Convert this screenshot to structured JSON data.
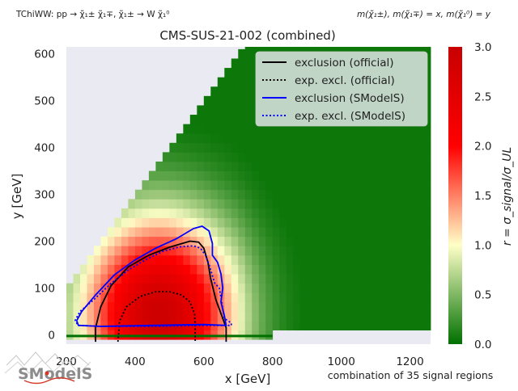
{
  "chart_data": {
    "type": "heatmap",
    "title": "CMS-SUS-21-002 (combined)",
    "process_label": "TChiWW: pp → χ̃₁± χ̃₁∓, χ̃₁± → W χ̃₁⁰",
    "mass_label": "m(χ̃₁±), m(χ̃₁∓) = x, m(χ̃₁⁰) = y",
    "xlabel": "x [GeV]",
    "ylabel": "y [GeV]",
    "colorbar_label": "r = σ_signal/σ_UL",
    "footnote": "combination of 35 signal regions",
    "logo_text": "SModelS",
    "xlim": [
      200,
      1260
    ],
    "ylim": [
      -20,
      615
    ],
    "clim": [
      0,
      3
    ],
    "x_ticks": [
      "200",
      "400",
      "600",
      "800",
      "1000",
      "1200"
    ],
    "y_ticks": [
      "0",
      "100",
      "200",
      "300",
      "400",
      "500",
      "600"
    ],
    "colorbar_ticks": [
      "0.0",
      "0.5",
      "1.0",
      "1.5",
      "2.0",
      "2.5",
      "3.0"
    ],
    "grid": false,
    "legend_position": "top-right",
    "colormap": [
      "#007000",
      "#ffffc8",
      "#ff0000",
      "#c80000"
    ],
    "background_color": "#eaeaf2",
    "heatmap_model": {
      "peak_r": 2.9,
      "peak_x": 470,
      "peak_y": 45,
      "domain": "y < x - 100 and y <= 615",
      "description": "r decreases from a red core around x≈470, y≈45 to dark green at large x and y"
    },
    "series": [
      {
        "name": "exclusion (official)",
        "color": "#000000",
        "style": "solid",
        "points": [
          [
            285,
            -15
          ],
          [
            285,
            15
          ],
          [
            300,
            60
          ],
          [
            330,
            105
          ],
          [
            380,
            145
          ],
          [
            440,
            170
          ],
          [
            500,
            187
          ],
          [
            560,
            200
          ],
          [
            585,
            198
          ],
          [
            600,
            185
          ],
          [
            612,
            155
          ],
          [
            620,
            120
          ],
          [
            635,
            75
          ],
          [
            655,
            35
          ],
          [
            665,
            15
          ],
          [
            665,
            -15
          ]
        ]
      },
      {
        "name": "exp. excl. (official)",
        "color": "#000000",
        "style": "dotted",
        "points": [
          [
            350,
            -15
          ],
          [
            355,
            30
          ],
          [
            375,
            60
          ],
          [
            415,
            82
          ],
          [
            460,
            92
          ],
          [
            500,
            92
          ],
          [
            535,
            85
          ],
          [
            560,
            70
          ],
          [
            573,
            45
          ],
          [
            575,
            15
          ],
          [
            575,
            -15
          ]
        ]
      },
      {
        "name": "exclusion (SModelS)",
        "color": "#0000ff",
        "style": "solid",
        "points": [
          [
            230,
            30
          ],
          [
            245,
            50
          ],
          [
            285,
            85
          ],
          [
            340,
            128
          ],
          [
            400,
            160
          ],
          [
            460,
            185
          ],
          [
            520,
            205
          ],
          [
            570,
            227
          ],
          [
            595,
            232
          ],
          [
            615,
            222
          ],
          [
            625,
            195
          ],
          [
            625,
            170
          ],
          [
            640,
            155
          ],
          [
            650,
            130
          ],
          [
            655,
            100
          ],
          [
            650,
            70
          ],
          [
            660,
            40
          ],
          [
            665,
            20
          ],
          [
            600,
            22
          ],
          [
            450,
            20
          ],
          [
            300,
            18
          ],
          [
            235,
            20
          ],
          [
            230,
            30
          ]
        ]
      },
      {
        "name": "exp. excl. (SModelS)",
        "color": "#0000ff",
        "style": "dotted",
        "points": [
          [
            225,
            30
          ],
          [
            240,
            50
          ],
          [
            280,
            75
          ],
          [
            330,
            110
          ],
          [
            380,
            138
          ],
          [
            430,
            160
          ],
          [
            480,
            178
          ],
          [
            530,
            188
          ],
          [
            570,
            190
          ],
          [
            590,
            185
          ],
          [
            605,
            170
          ],
          [
            615,
            150
          ],
          [
            632,
            110
          ],
          [
            645,
            100
          ],
          [
            650,
            80
          ],
          [
            655,
            55
          ],
          [
            660,
            35
          ],
          [
            680,
            25
          ],
          [
            680,
            20
          ],
          [
            600,
            20
          ],
          [
            450,
            18
          ],
          [
            300,
            18
          ],
          [
            235,
            20
          ],
          [
            225,
            30
          ]
        ]
      }
    ]
  }
}
